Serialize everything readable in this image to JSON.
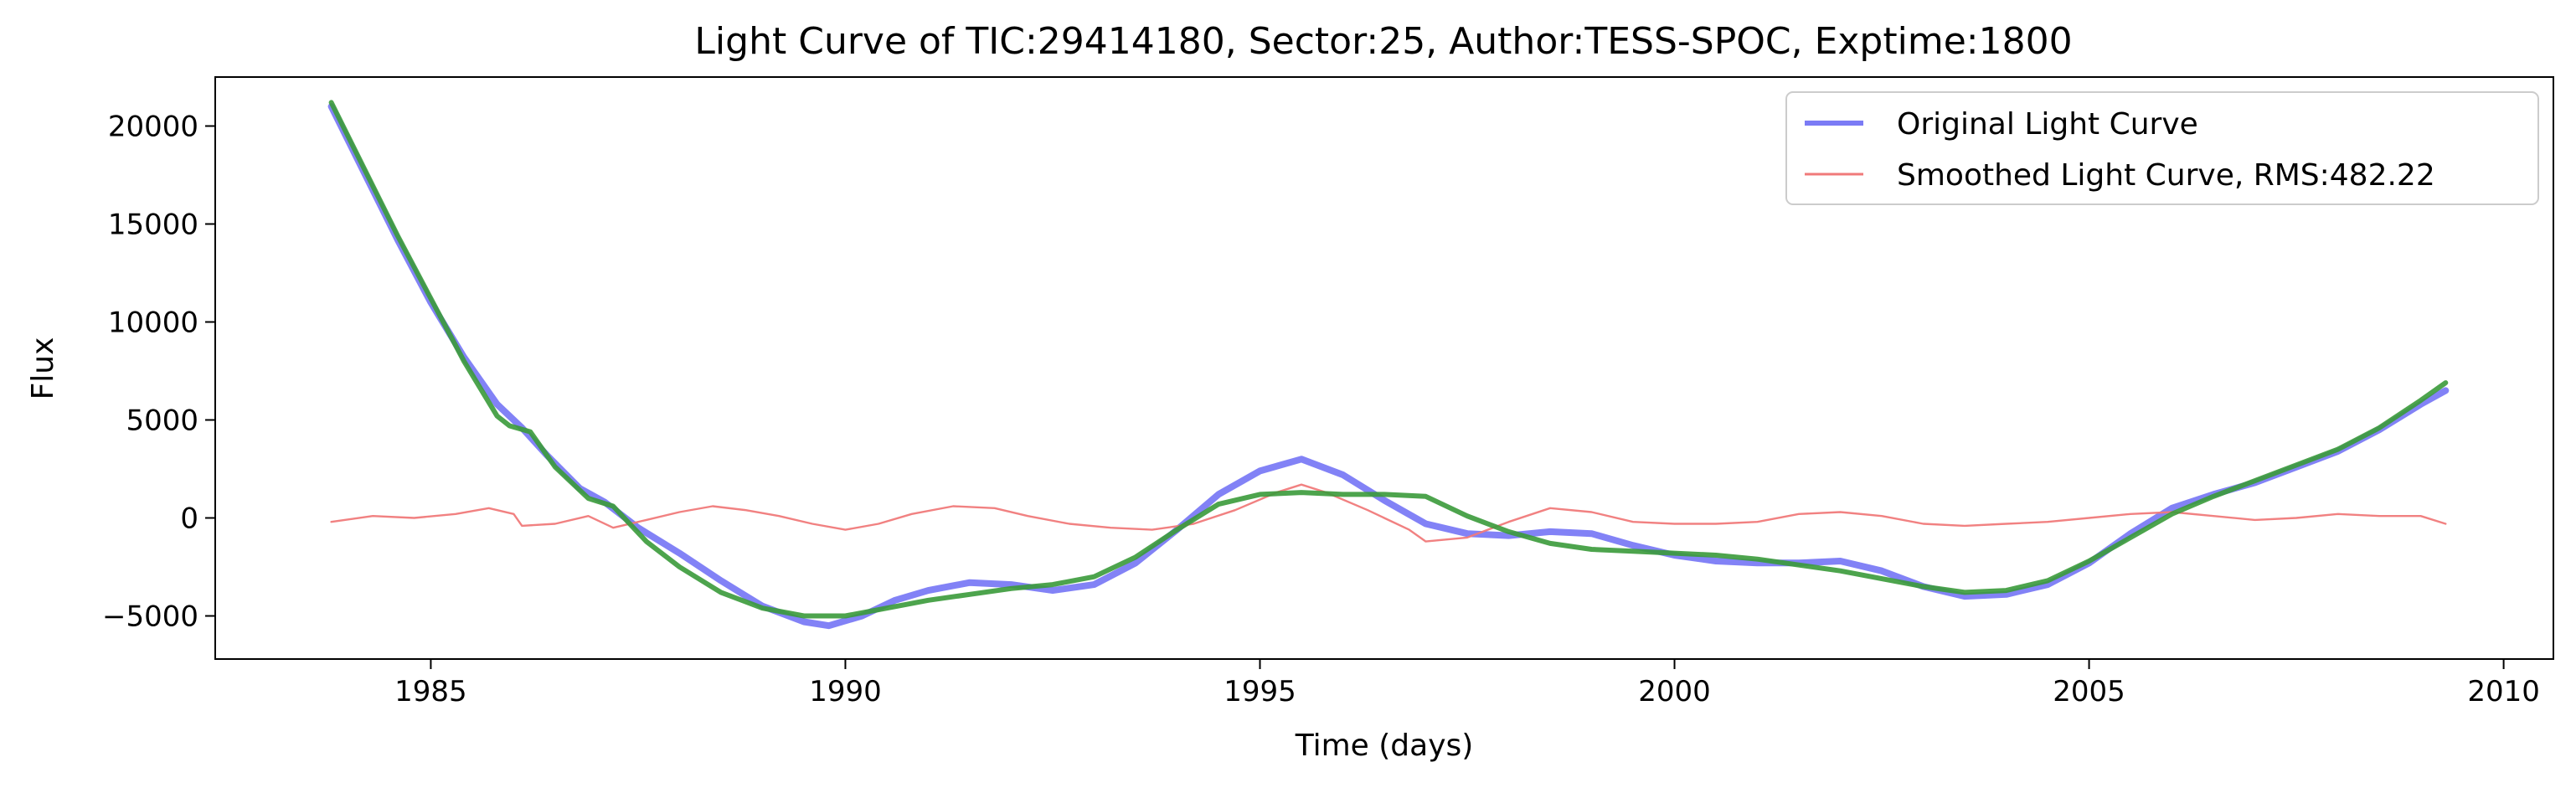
{
  "chart_data": {
    "type": "line",
    "title": "Light Curve of TIC:29414180, Sector:25, Author:TESS-SPOC, Exptime:1800",
    "xlabel": "Time (days)",
    "ylabel": "Flux",
    "xlim": [
      1982.4,
      2010.6
    ],
    "ylim": [
      -7200,
      22500
    ],
    "xticks": [
      1985,
      1990,
      1995,
      2000,
      2005,
      2010
    ],
    "yticks": [
      -5000,
      0,
      5000,
      10000,
      15000,
      20000
    ],
    "xtick_labels": [
      "1985",
      "1990",
      "1995",
      "2000",
      "2005",
      "2010"
    ],
    "ytick_labels": [
      "−5000",
      "0",
      "5000",
      "10000",
      "15000",
      "20000"
    ],
    "grid": false,
    "legend_position": "top-right",
    "series": [
      {
        "name": "Original Light Curve",
        "color": "#7b7bf5",
        "points": [
          [
            1983.8,
            21000
          ],
          [
            1984.2,
            17600
          ],
          [
            1984.6,
            14200
          ],
          [
            1985.0,
            11000
          ],
          [
            1985.4,
            8200
          ],
          [
            1985.8,
            5800
          ],
          [
            1986.1,
            4600
          ],
          [
            1986.4,
            3200
          ],
          [
            1986.8,
            1500
          ],
          [
            1987.1,
            800
          ],
          [
            1987.5,
            -500
          ],
          [
            1988.0,
            -1800
          ],
          [
            1988.5,
            -3200
          ],
          [
            1989.0,
            -4500
          ],
          [
            1989.5,
            -5300
          ],
          [
            1989.8,
            -5500
          ],
          [
            1990.2,
            -5000
          ],
          [
            1990.6,
            -4200
          ],
          [
            1991.0,
            -3700
          ],
          [
            1991.5,
            -3300
          ],
          [
            1992.0,
            -3400
          ],
          [
            1992.5,
            -3700
          ],
          [
            1993.0,
            -3400
          ],
          [
            1993.5,
            -2300
          ],
          [
            1994.0,
            -600
          ],
          [
            1994.5,
            1200
          ],
          [
            1995.0,
            2400
          ],
          [
            1995.5,
            3000
          ],
          [
            1996.0,
            2200
          ],
          [
            1996.5,
            900
          ],
          [
            1997.0,
            -300
          ],
          [
            1997.5,
            -800
          ],
          [
            1998.0,
            -900
          ],
          [
            1998.5,
            -700
          ],
          [
            1999.0,
            -800
          ],
          [
            1999.5,
            -1400
          ],
          [
            2000.0,
            -1900
          ],
          [
            2000.5,
            -2200
          ],
          [
            2001.0,
            -2300
          ],
          [
            2001.5,
            -2300
          ],
          [
            2002.0,
            -2200
          ],
          [
            2002.5,
            -2700
          ],
          [
            2003.0,
            -3500
          ],
          [
            2003.5,
            -4000
          ],
          [
            2004.0,
            -3900
          ],
          [
            2004.5,
            -3400
          ],
          [
            2005.0,
            -2300
          ],
          [
            2005.5,
            -800
          ],
          [
            2006.0,
            500
          ],
          [
            2006.5,
            1200
          ],
          [
            2007.0,
            1800
          ],
          [
            2007.5,
            2600
          ],
          [
            2008.0,
            3400
          ],
          [
            2008.5,
            4500
          ],
          [
            2009.0,
            5800
          ],
          [
            2009.3,
            6500
          ]
        ]
      },
      {
        "name": "Smoothed Light Curve, RMS:482.22",
        "color": "#f07a7a",
        "points": [
          [
            1983.8,
            -200
          ],
          [
            1984.3,
            100
          ],
          [
            1984.8,
            0
          ],
          [
            1985.3,
            200
          ],
          [
            1985.7,
            500
          ],
          [
            1986.0,
            200
          ],
          [
            1986.1,
            -400
          ],
          [
            1986.5,
            -300
          ],
          [
            1986.9,
            100
          ],
          [
            1987.2,
            -500
          ],
          [
            1987.6,
            -100
          ],
          [
            1988.0,
            300
          ],
          [
            1988.4,
            600
          ],
          [
            1988.8,
            400
          ],
          [
            1989.2,
            100
          ],
          [
            1989.6,
            -300
          ],
          [
            1990.0,
            -600
          ],
          [
            1990.4,
            -300
          ],
          [
            1990.8,
            200
          ],
          [
            1991.3,
            600
          ],
          [
            1991.8,
            500
          ],
          [
            1992.2,
            100
          ],
          [
            1992.7,
            -300
          ],
          [
            1993.2,
            -500
          ],
          [
            1993.7,
            -600
          ],
          [
            1994.2,
            -300
          ],
          [
            1994.7,
            400
          ],
          [
            1995.2,
            1300
          ],
          [
            1995.5,
            1700
          ],
          [
            1995.8,
            1300
          ],
          [
            1996.3,
            400
          ],
          [
            1996.8,
            -600
          ],
          [
            1997.0,
            -1200
          ],
          [
            1997.5,
            -1000
          ],
          [
            1998.0,
            -200
          ],
          [
            1998.5,
            500
          ],
          [
            1999.0,
            300
          ],
          [
            1999.5,
            -200
          ],
          [
            2000.0,
            -300
          ],
          [
            2000.5,
            -300
          ],
          [
            2001.0,
            -200
          ],
          [
            2001.5,
            200
          ],
          [
            2002.0,
            300
          ],
          [
            2002.5,
            100
          ],
          [
            2003.0,
            -300
          ],
          [
            2003.5,
            -400
          ],
          [
            2004.0,
            -300
          ],
          [
            2004.5,
            -200
          ],
          [
            2005.0,
            0
          ],
          [
            2005.5,
            200
          ],
          [
            2006.0,
            300
          ],
          [
            2006.5,
            100
          ],
          [
            2007.0,
            -100
          ],
          [
            2007.5,
            0
          ],
          [
            2008.0,
            200
          ],
          [
            2008.5,
            100
          ],
          [
            2009.0,
            100
          ],
          [
            2009.3,
            -300
          ]
        ]
      },
      {
        "color": "#3a9a3a",
        "points": [
          [
            1983.8,
            21200
          ],
          [
            1984.2,
            17800
          ],
          [
            1984.6,
            14400
          ],
          [
            1985.0,
            11200
          ],
          [
            1985.4,
            8000
          ],
          [
            1985.8,
            5200
          ],
          [
            1985.95,
            4700
          ],
          [
            1986.2,
            4400
          ],
          [
            1986.5,
            2600
          ],
          [
            1986.9,
            1000
          ],
          [
            1987.2,
            600
          ],
          [
            1987.6,
            -1200
          ],
          [
            1988.0,
            -2500
          ],
          [
            1988.5,
            -3800
          ],
          [
            1989.0,
            -4600
          ],
          [
            1989.5,
            -5000
          ],
          [
            1990.0,
            -5000
          ],
          [
            1990.5,
            -4600
          ],
          [
            1991.0,
            -4200
          ],
          [
            1991.5,
            -3900
          ],
          [
            1992.0,
            -3600
          ],
          [
            1992.5,
            -3400
          ],
          [
            1993.0,
            -3000
          ],
          [
            1993.5,
            -2000
          ],
          [
            1994.0,
            -600
          ],
          [
            1994.5,
            700
          ],
          [
            1995.0,
            1200
          ],
          [
            1995.5,
            1300
          ],
          [
            1996.0,
            1200
          ],
          [
            1996.5,
            1200
          ],
          [
            1997.0,
            1100
          ],
          [
            1997.5,
            100
          ],
          [
            1998.0,
            -700
          ],
          [
            1998.5,
            -1300
          ],
          [
            1999.0,
            -1600
          ],
          [
            1999.5,
            -1700
          ],
          [
            2000.0,
            -1800
          ],
          [
            2000.5,
            -1900
          ],
          [
            2001.0,
            -2100
          ],
          [
            2001.5,
            -2400
          ],
          [
            2002.0,
            -2700
          ],
          [
            2002.5,
            -3100
          ],
          [
            2003.0,
            -3500
          ],
          [
            2003.5,
            -3800
          ],
          [
            2004.0,
            -3700
          ],
          [
            2004.5,
            -3200
          ],
          [
            2005.0,
            -2200
          ],
          [
            2005.5,
            -1000
          ],
          [
            2006.0,
            200
          ],
          [
            2006.5,
            1100
          ],
          [
            2007.0,
            1900
          ],
          [
            2007.5,
            2700
          ],
          [
            2008.0,
            3500
          ],
          [
            2008.5,
            4600
          ],
          [
            2009.0,
            6000
          ],
          [
            2009.3,
            6900
          ]
        ]
      }
    ]
  }
}
